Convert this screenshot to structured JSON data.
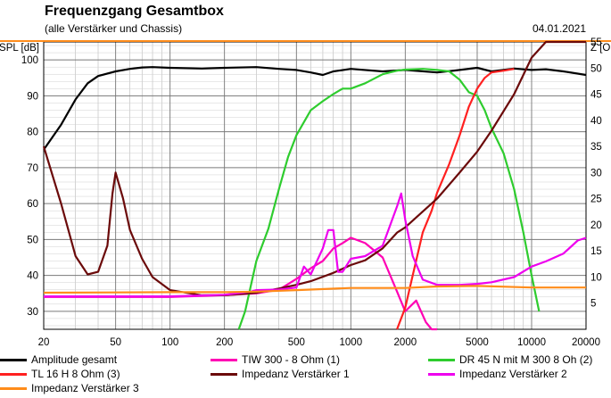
{
  "header": {
    "title": "Frequenzgang Gesamtbox",
    "subtitle": "(alle Verstärker und Chassis)",
    "date": "04.01.2021"
  },
  "chart_data": {
    "type": "line",
    "title": "Frequenzgang Gesamtbox",
    "xlabel": "",
    "ylabel": "SPL [dB]",
    "y2label": "Z [Ohm]",
    "x_scale": "log",
    "xlim": [
      20,
      20000
    ],
    "ylim": [
      25,
      105
    ],
    "y2lim": [
      0,
      55
    ],
    "x_ticks": [
      20,
      50,
      100,
      200,
      500,
      1000,
      2000,
      5000,
      10000,
      20000
    ],
    "y_ticks": [
      30,
      40,
      50,
      60,
      70,
      80,
      90,
      100
    ],
    "y2_ticks": [
      5,
      10,
      15,
      20,
      25,
      30,
      35,
      40,
      45,
      50,
      55
    ],
    "grid": true,
    "legend_position": "bottom",
    "series": [
      {
        "name": "Amplitude gesamt",
        "color": "#000000",
        "axis": "left",
        "x": [
          20,
          25,
          30,
          35,
          40,
          50,
          60,
          70,
          80,
          100,
          150,
          200,
          300,
          400,
          500,
          600,
          700,
          800,
          1000,
          1500,
          2000,
          3000,
          4000,
          5000,
          6000,
          8000,
          10000,
          12000,
          15000,
          20000
        ],
        "y": [
          75,
          82,
          89,
          93.5,
          95.5,
          96.8,
          97.5,
          97.9,
          98,
          97.8,
          97.6,
          97.8,
          98,
          97.5,
          97.2,
          96.5,
          95.8,
          96.8,
          97.5,
          96.8,
          97.2,
          96.5,
          97.2,
          97.8,
          96.8,
          97.6,
          97.2,
          97.4,
          96.8,
          95.8
        ]
      },
      {
        "name": "TIW 300 - 8 Ohm (1)",
        "color": "#ff00b4",
        "axis": "left",
        "x": [
          20,
          100,
          200,
          300,
          400,
          500,
          600,
          700,
          800,
          900,
          1000,
          1200,
          1500,
          1800,
          2000,
          2300,
          2600,
          2800,
          3000
        ],
        "y": [
          34,
          34,
          34.5,
          35,
          36,
          39,
          42,
          44,
          47.5,
          49,
          50.5,
          49,
          45,
          35.5,
          30,
          33,
          27,
          25,
          25
        ]
      },
      {
        "name": "DR 45 N mit M 300 8 Oh (2)",
        "color": "#2ecc2e",
        "axis": "left",
        "x": [
          240,
          260,
          300,
          350,
          400,
          450,
          500,
          600,
          700,
          800,
          900,
          1000,
          1200,
          1500,
          1800,
          2000,
          2500,
          3000,
          3500,
          4000,
          4500,
          5000,
          5500,
          6000,
          7000,
          8000,
          9000,
          10000,
          11000
        ],
        "y": [
          25,
          30,
          44,
          53,
          64,
          73,
          79,
          86,
          88.5,
          90.5,
          92,
          92,
          93.5,
          96,
          97,
          97.3,
          97.5,
          97.2,
          96.8,
          94.5,
          91,
          90,
          86,
          81,
          74,
          64,
          52,
          40,
          30
        ]
      },
      {
        "name": "TL 16 H 8 Ohm (3)",
        "color": "#ff2020",
        "axis": "left",
        "x": [
          1800,
          2000,
          2200,
          2500,
          2800,
          3000,
          3500,
          4000,
          4500,
          5000,
          5500,
          6000,
          7000,
          8000
        ],
        "y": [
          25,
          31,
          40,
          52,
          58,
          63,
          71,
          79,
          87,
          92,
          95,
          96.5,
          97,
          97.5
        ]
      },
      {
        "name": "Impedanz Verstärker 1",
        "color": "#6b0a0a",
        "axis": "right",
        "x": [
          20,
          25,
          30,
          35,
          40,
          45,
          48,
          50,
          55,
          60,
          70,
          80,
          100,
          150,
          200,
          300,
          400,
          500,
          600,
          800,
          1000,
          1200,
          1500,
          1800,
          2000,
          3000,
          4000,
          5000,
          6000,
          8000,
          10000,
          12000,
          15000,
          20000
        ],
        "y": [
          35,
          24,
          14,
          10.5,
          11,
          16,
          26,
          30,
          25,
          19,
          13.5,
          10,
          7.5,
          6.5,
          6.5,
          7,
          7.8,
          8.5,
          9.2,
          10.8,
          12.3,
          13.2,
          15.5,
          18.5,
          19.5,
          25,
          30,
          34,
          38,
          45,
          52,
          56,
          57,
          57
        ]
      },
      {
        "name": "Impedanz Verstärker 2",
        "color": "#ee00ee",
        "axis": "right",
        "x": [
          20,
          100,
          200,
          280,
          300,
          400,
          500,
          550,
          600,
          700,
          750,
          800,
          850,
          900,
          1000,
          1200,
          1500,
          1800,
          1900,
          2000,
          2200,
          2500,
          3000,
          4000,
          5000,
          6000,
          8000,
          10000,
          12000,
          15000,
          18000,
          20000
        ],
        "y": [
          6.3,
          6.3,
          6.6,
          7.2,
          7.5,
          7.6,
          8,
          12,
          10.5,
          15.5,
          19,
          19,
          11,
          11,
          13.5,
          14,
          16,
          23.5,
          26,
          21,
          14,
          9.5,
          8.5,
          8.5,
          8.7,
          9,
          10,
          12,
          13,
          14.5,
          17,
          17.5
        ]
      },
      {
        "name": "Impedanz Verstärker 3",
        "color": "#ff8c1a",
        "axis": "right",
        "x": [
          20,
          100,
          200,
          300,
          500,
          1000,
          2000,
          3000,
          5000,
          10000,
          20000
        ],
        "y": [
          7,
          7.1,
          7.1,
          7.2,
          7.5,
          7.9,
          7.9,
          8.2,
          8.3,
          8,
          8
        ]
      }
    ]
  }
}
